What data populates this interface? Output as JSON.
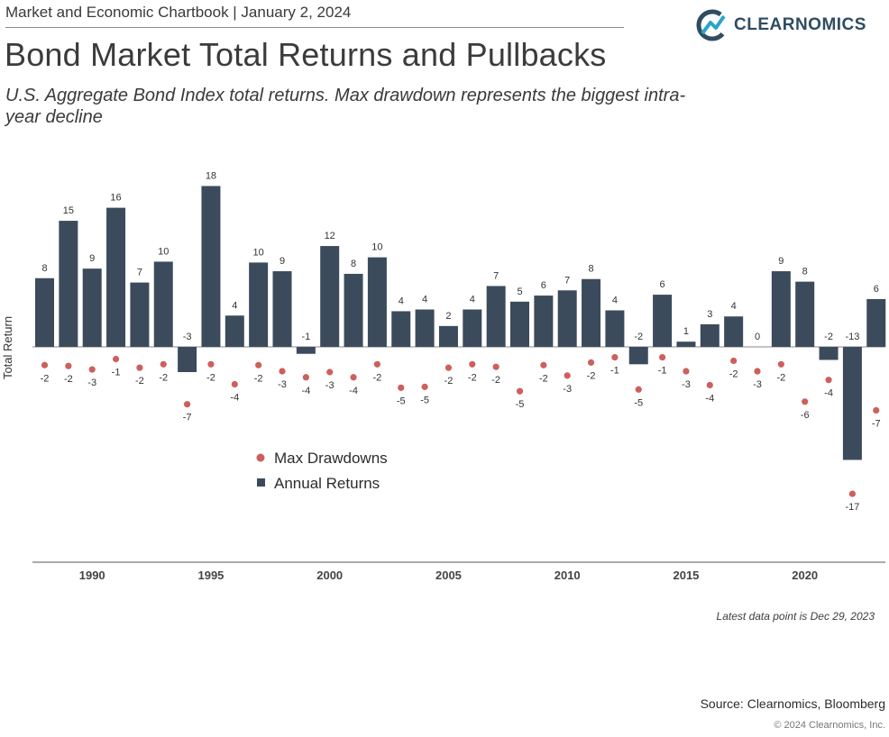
{
  "header": {
    "topline": "Market and Economic Chartbook | January 2, 2024",
    "logo_text": "CLEARNOMICS",
    "title": "Bond Market Total Returns and Pullbacks",
    "subtitle": "U.S. Aggregate Bond Index total returns. Max drawdown represents the biggest intra-year decline"
  },
  "footer": {
    "note": "Latest data point is Dec 29, 2023",
    "source": "Source: Clearnomics, Bloomberg",
    "copyright": "© 2024 Clearnomics, Inc."
  },
  "colors": {
    "bar": "#3b4b5c",
    "dot": "#cd5f5d",
    "axis": "#555555"
  },
  "chart_data": {
    "type": "bar",
    "title": "",
    "ylabel": "Total Return",
    "ylim": [
      -21,
      20
    ],
    "legend_position": "center-left",
    "x": [
      1988,
      1989,
      1990,
      1991,
      1992,
      1993,
      1994,
      1995,
      1996,
      1997,
      1998,
      1999,
      2000,
      2001,
      2002,
      2003,
      2004,
      2005,
      2006,
      2007,
      2008,
      2009,
      2010,
      2011,
      2012,
      2013,
      2014,
      2015,
      2016,
      2017,
      2018,
      2019,
      2020,
      2021,
      2022,
      2023
    ],
    "xticks": [
      "1990",
      "1995",
      "2000",
      "2005",
      "2010",
      "2015",
      "2020"
    ],
    "series": [
      {
        "name": "Annual Returns",
        "kind": "bar",
        "values": [
          7.9,
          14.5,
          9.0,
          16.0,
          7.4,
          9.8,
          -2.9,
          18.5,
          3.6,
          9.7,
          8.7,
          -0.8,
          11.6,
          8.4,
          10.3,
          4.1,
          4.3,
          2.4,
          4.3,
          7.0,
          5.2,
          5.9,
          6.5,
          7.8,
          4.2,
          -2.0,
          6.0,
          0.6,
          2.6,
          3.5,
          0.0,
          8.7,
          7.5,
          -1.5,
          -13.0,
          5.5
        ],
        "labels": [
          "8",
          "15",
          "9",
          "16",
          "7",
          "10",
          "-3",
          "18",
          "4",
          "10",
          "9",
          "-1",
          "12",
          "8",
          "10",
          "4",
          "4",
          "2",
          "4",
          "7",
          "5",
          "6",
          "7",
          "8",
          "4",
          "-2",
          "6",
          "1",
          "3",
          "4",
          "0",
          "9",
          "8",
          "-2",
          "-13",
          "6"
        ]
      },
      {
        "name": "Max Drawdowns",
        "kind": "scatter",
        "values": [
          -2.1,
          -2.2,
          -2.6,
          -1.4,
          -2.4,
          -2.0,
          -6.6,
          -2.0,
          -4.3,
          -2.1,
          -2.8,
          -3.5,
          -2.9,
          -3.5,
          -2.0,
          -4.7,
          -4.6,
          -2.4,
          -2.0,
          -2.3,
          -5.1,
          -2.1,
          -3.3,
          -1.8,
          -1.2,
          -4.9,
          -1.2,
          -2.8,
          -4.4,
          -1.6,
          -2.8,
          -2.0,
          -6.3,
          -3.8,
          -16.9,
          -7.3
        ],
        "labels": [
          "-2",
          "-2",
          "-3",
          "-1",
          "-2",
          "-2",
          "-7",
          "-2",
          "-4",
          "-2",
          "-3",
          "-4",
          "-3",
          "-4",
          "-2",
          "-5",
          "-5",
          "-2",
          "-2",
          "-2",
          "-5",
          "-2",
          "-3",
          "-2",
          "-1",
          "-5",
          "-1",
          "-3",
          "-4",
          "-2",
          "-3",
          "-2",
          "-6",
          "-4",
          "-17",
          "-7"
        ]
      }
    ]
  }
}
